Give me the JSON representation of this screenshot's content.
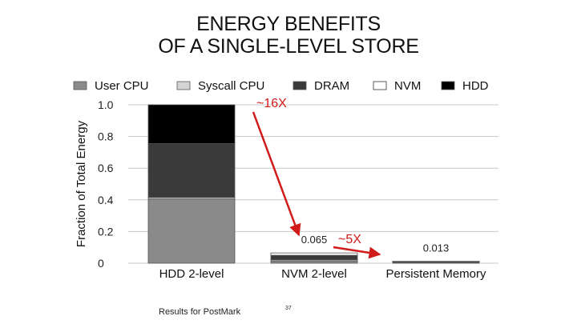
{
  "slide": {
    "title_line1": "ENERGY BENEFITS",
    "title_line2": "OF A SINGLE-LEVEL STORE",
    "footer_note": "Results for PostMark",
    "page_number": "37"
  },
  "chart_data": {
    "type": "bar",
    "stacked": true,
    "title": "ENERGY BENEFITS OF A SINGLE-LEVEL STORE",
    "xlabel": "",
    "ylabel": "Fraction of Total Energy",
    "ylim": [
      0,
      1.0
    ],
    "yticks": [
      "1.0",
      "0.8",
      "0.6",
      "0.4",
      "0.2",
      "0"
    ],
    "grid": true,
    "legend_position": "top",
    "categories": [
      "HDD 2-level",
      "NVM 2-level",
      "Persistent Memory"
    ],
    "series": [
      {
        "name": "User CPU",
        "color": "#8a8a8a",
        "values": [
          0.405,
          0.012,
          0.004
        ]
      },
      {
        "name": "Syscall CPU",
        "color": "#d4d4d4",
        "values": [
          0.01,
          0.008,
          0.0
        ]
      },
      {
        "name": "DRAM",
        "color": "#3a3a3a",
        "values": [
          0.34,
          0.03,
          0.004
        ]
      },
      {
        "name": "NVM",
        "color": "#ffffff",
        "values": [
          0.0,
          0.015,
          0.005
        ]
      },
      {
        "name": "HDD",
        "color": "#000000",
        "values": [
          0.245,
          0.0,
          0.0
        ]
      }
    ],
    "bar_labels": [
      "",
      "0.065",
      "0.013"
    ],
    "annotations": [
      {
        "text": "~16X",
        "from": "HDD 2-level",
        "to": "NVM 2-level",
        "color": "#d11a1a"
      },
      {
        "text": "~5X",
        "from": "NVM 2-level",
        "to": "Persistent Memory",
        "color": "#d11a1a"
      }
    ]
  }
}
